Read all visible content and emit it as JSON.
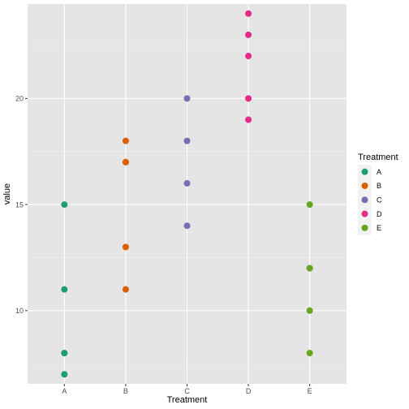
{
  "chart_data": {
    "type": "scatter",
    "title": "",
    "xlabel": "Treatment",
    "ylabel": "value",
    "categories": [
      "A",
      "B",
      "C",
      "D",
      "E"
    ],
    "ylim": [
      6.55,
      24.45
    ],
    "y_ticks": [
      10,
      15,
      20
    ],
    "grid": true,
    "legend": {
      "title": "Treatment",
      "placement": "right"
    },
    "series": [
      {
        "name": "A",
        "color": "#1b9e77",
        "x": "A",
        "values": [
          15,
          11,
          8,
          8,
          7
        ]
      },
      {
        "name": "B",
        "color": "#d95f02",
        "x": "B",
        "values": [
          18,
          17,
          17,
          13,
          11
        ]
      },
      {
        "name": "C",
        "color": "#7570b3",
        "x": "C",
        "values": [
          20,
          18,
          16,
          14
        ]
      },
      {
        "name": "D",
        "color": "#e7298a",
        "x": "D",
        "values": [
          24,
          23,
          22,
          20,
          19
        ]
      },
      {
        "name": "E",
        "color": "#66a61e",
        "x": "E",
        "values": [
          15,
          12,
          12,
          10,
          8
        ]
      }
    ]
  }
}
